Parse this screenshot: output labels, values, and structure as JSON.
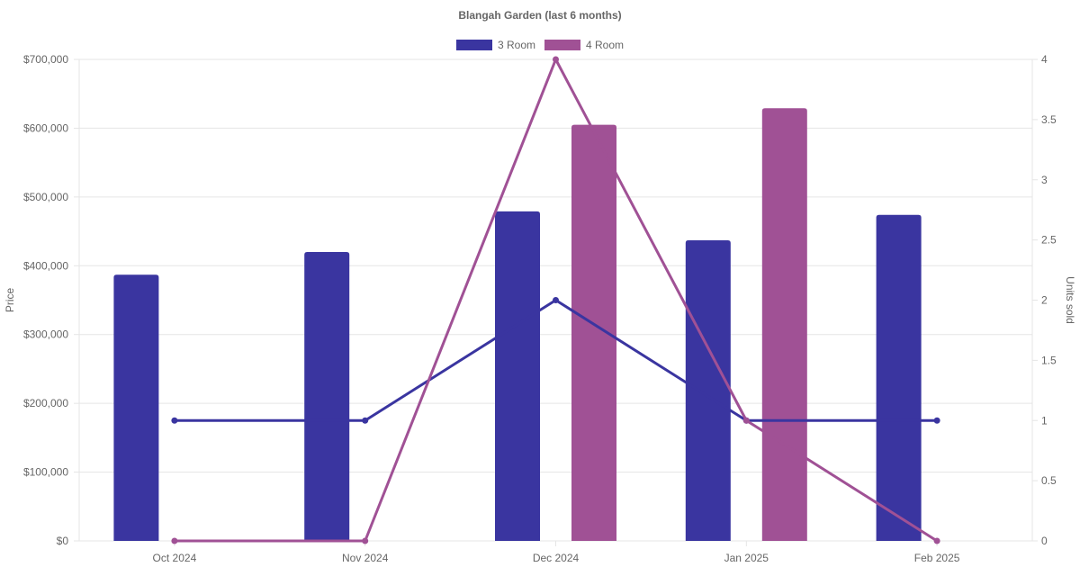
{
  "chart_data": {
    "type": "bar",
    "title": "Blangah Garden (last 6 months)",
    "categories": [
      "Oct 2024",
      "Nov 2024",
      "Dec 2024",
      "Jan 2025",
      "Feb 2025"
    ],
    "y_left": {
      "label": "Price",
      "ticks": [
        "$0",
        "$100,000",
        "$200,000",
        "$300,000",
        "$400,000",
        "$500,000",
        "$600,000",
        "$700,000"
      ],
      "range": [
        0,
        700000
      ]
    },
    "y_right": {
      "label": "Units sold",
      "ticks": [
        "0",
        "0.5",
        "1",
        "1.5",
        "2",
        "2.5",
        "3",
        "3.5",
        "4"
      ],
      "range": [
        0,
        4
      ]
    },
    "series": [
      {
        "name": "3 Room",
        "color": "#3a35a0",
        "type": "bar",
        "axis": "left",
        "values": [
          387000,
          420000,
          479000,
          437000,
          474000
        ]
      },
      {
        "name": "4 Room",
        "color": "#a05195",
        "type": "bar",
        "axis": "left",
        "values": [
          null,
          null,
          605000,
          629000,
          null
        ]
      },
      {
        "name": "3 Room",
        "color": "#3a35a0",
        "type": "line",
        "axis": "right",
        "values": [
          1,
          1,
          2,
          1,
          1
        ]
      },
      {
        "name": "4 Room",
        "color": "#a05195",
        "type": "line",
        "axis": "right",
        "values": [
          0,
          0,
          4,
          1,
          0
        ]
      }
    ],
    "legend": [
      "3 Room",
      "4 Room"
    ],
    "legend_position": "top",
    "grid": true
  }
}
